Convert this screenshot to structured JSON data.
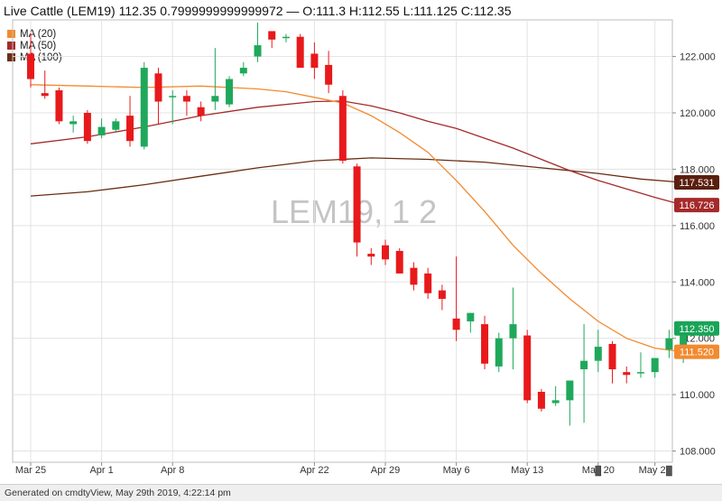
{
  "header": {
    "title": "Live Cattle (LEM19) 112.35 0.7999999999999972 — O:111.3 H:112.55 L:111.125 C:112.35"
  },
  "legend": [
    {
      "label": "MA (20)",
      "color": "#f28a30"
    },
    {
      "label": "MA (50)",
      "color": "#a52a2a"
    },
    {
      "label": "MA (100)",
      "color": "#6b2e12"
    }
  ],
  "watermark": "LEM19, 1 2",
  "footer": {
    "text": "Generated on cmdtyView, May 29th 2019, 4:22:14 pm"
  },
  "chart_data": {
    "type": "candlestick",
    "ylim": [
      107.6,
      123.3
    ],
    "y_ticks": [
      "108.000",
      "110.000",
      "112.000",
      "114.000",
      "116.000",
      "118.000",
      "120.000",
      "122.000"
    ],
    "x_labels": [
      {
        "label": "Mar 25",
        "i": 0
      },
      {
        "label": "Apr 1",
        "i": 5
      },
      {
        "label": "Apr 8",
        "i": 10
      },
      {
        "label": "Apr 22",
        "i": 20
      },
      {
        "label": "Apr 29",
        "i": 25
      },
      {
        "label": "May 6",
        "i": 30
      },
      {
        "label": "May 13",
        "i": 35
      },
      {
        "label": "May 20",
        "i": 40
      },
      {
        "label": "May 27",
        "i": 44
      }
    ],
    "candles": [
      {
        "o": 122.1,
        "h": 122.8,
        "l": 120.9,
        "c": 121.2
      },
      {
        "o": 120.7,
        "h": 121.5,
        "l": 120.5,
        "c": 120.6
      },
      {
        "o": 120.8,
        "h": 120.9,
        "l": 119.6,
        "c": 119.7
      },
      {
        "o": 119.6,
        "h": 119.9,
        "l": 119.3,
        "c": 119.7
      },
      {
        "o": 120.0,
        "h": 120.1,
        "l": 118.9,
        "c": 119.0
      },
      {
        "o": 119.2,
        "h": 119.8,
        "l": 119.1,
        "c": 119.5
      },
      {
        "o": 119.4,
        "h": 119.8,
        "l": 119.3,
        "c": 119.7
      },
      {
        "o": 119.9,
        "h": 120.6,
        "l": 118.8,
        "c": 119.0
      },
      {
        "o": 118.8,
        "h": 121.8,
        "l": 118.7,
        "c": 121.6
      },
      {
        "o": 121.4,
        "h": 121.6,
        "l": 119.6,
        "c": 120.4
      },
      {
        "o": 120.6,
        "h": 120.8,
        "l": 119.6,
        "c": 120.6
      },
      {
        "o": 120.6,
        "h": 120.8,
        "l": 119.9,
        "c": 120.4
      },
      {
        "o": 120.2,
        "h": 120.4,
        "l": 119.7,
        "c": 119.9
      },
      {
        "o": 120.4,
        "h": 122.3,
        "l": 120.1,
        "c": 120.6
      },
      {
        "o": 120.3,
        "h": 121.3,
        "l": 120.2,
        "c": 121.2
      },
      {
        "o": 121.4,
        "h": 121.8,
        "l": 121.3,
        "c": 121.6
      },
      {
        "o": 122.0,
        "h": 123.2,
        "l": 121.8,
        "c": 122.4
      },
      {
        "o": 122.9,
        "h": 122.9,
        "l": 122.3,
        "c": 122.6
      },
      {
        "o": 122.7,
        "h": 122.8,
        "l": 122.5,
        "c": 122.7
      },
      {
        "o": 122.7,
        "h": 122.8,
        "l": 121.6,
        "c": 121.6
      },
      {
        "o": 122.1,
        "h": 122.5,
        "l": 121.2,
        "c": 121.6
      },
      {
        "o": 121.7,
        "h": 122.2,
        "l": 120.7,
        "c": 121.0
      },
      {
        "o": 120.6,
        "h": 120.8,
        "l": 118.2,
        "c": 118.3
      },
      {
        "o": 118.1,
        "h": 118.2,
        "l": 114.9,
        "c": 115.4
      },
      {
        "o": 115.0,
        "h": 115.2,
        "l": 114.6,
        "c": 114.9
      },
      {
        "o": 115.3,
        "h": 115.5,
        "l": 114.6,
        "c": 114.8
      },
      {
        "o": 115.1,
        "h": 115.2,
        "l": 114.3,
        "c": 114.3
      },
      {
        "o": 114.5,
        "h": 114.7,
        "l": 113.7,
        "c": 113.9
      },
      {
        "o": 114.3,
        "h": 114.5,
        "l": 113.4,
        "c": 113.6
      },
      {
        "o": 113.7,
        "h": 113.9,
        "l": 113.0,
        "c": 113.4
      },
      {
        "o": 112.7,
        "h": 114.9,
        "l": 111.9,
        "c": 112.3
      },
      {
        "o": 112.6,
        "h": 112.9,
        "l": 112.2,
        "c": 112.9
      },
      {
        "o": 112.5,
        "h": 112.8,
        "l": 110.9,
        "c": 111.1
      },
      {
        "o": 111.0,
        "h": 112.2,
        "l": 110.8,
        "c": 112.0
      },
      {
        "o": 112.0,
        "h": 113.8,
        "l": 110.9,
        "c": 112.5
      },
      {
        "o": 112.1,
        "h": 112.3,
        "l": 109.7,
        "c": 109.8
      },
      {
        "o": 110.1,
        "h": 110.2,
        "l": 109.4,
        "c": 109.5
      },
      {
        "o": 109.7,
        "h": 110.3,
        "l": 109.6,
        "c": 109.8
      },
      {
        "o": 109.8,
        "h": 110.5,
        "l": 108.9,
        "c": 110.5
      },
      {
        "o": 110.9,
        "h": 112.5,
        "l": 109.0,
        "c": 111.2
      },
      {
        "o": 111.2,
        "h": 112.3,
        "l": 110.8,
        "c": 111.7
      },
      {
        "o": 111.8,
        "h": 111.9,
        "l": 110.4,
        "c": 110.9
      },
      {
        "o": 110.8,
        "h": 111.0,
        "l": 110.4,
        "c": 110.7
      },
      {
        "o": 110.8,
        "h": 111.5,
        "l": 110.6,
        "c": 110.8
      },
      {
        "o": 110.8,
        "h": 111.3,
        "l": 110.6,
        "c": 111.3
      },
      {
        "o": 111.6,
        "h": 112.3,
        "l": 111.3,
        "c": 112.0
      },
      {
        "o": 111.3,
        "h": 112.55,
        "l": 111.125,
        "c": 112.35
      }
    ],
    "ma20": [
      [
        0,
        121.0
      ],
      [
        4,
        120.95
      ],
      [
        8,
        120.9
      ],
      [
        12,
        120.95
      ],
      [
        16,
        120.85
      ],
      [
        18,
        120.75
      ],
      [
        20,
        120.55
      ],
      [
        22,
        120.35
      ],
      [
        24,
        119.9
      ],
      [
        26,
        119.3
      ],
      [
        28,
        118.6
      ],
      [
        30,
        117.6
      ],
      [
        32,
        116.5
      ],
      [
        34,
        115.3
      ],
      [
        36,
        114.3
      ],
      [
        38,
        113.4
      ],
      [
        40,
        112.6
      ],
      [
        42,
        112.0
      ],
      [
        44,
        111.65
      ],
      [
        46,
        111.52
      ]
    ],
    "ma50": [
      [
        0,
        118.9
      ],
      [
        4,
        119.15
      ],
      [
        8,
        119.5
      ],
      [
        12,
        119.9
      ],
      [
        16,
        120.2
      ],
      [
        20,
        120.4
      ],
      [
        22,
        120.42
      ],
      [
        24,
        120.25
      ],
      [
        26,
        120.0
      ],
      [
        28,
        119.7
      ],
      [
        30,
        119.45
      ],
      [
        32,
        119.1
      ],
      [
        34,
        118.75
      ],
      [
        36,
        118.35
      ],
      [
        38,
        117.95
      ],
      [
        40,
        117.6
      ],
      [
        42,
        117.3
      ],
      [
        44,
        117.0
      ],
      [
        46,
        116.73
      ]
    ],
    "ma100": [
      [
        0,
        117.05
      ],
      [
        4,
        117.2
      ],
      [
        8,
        117.45
      ],
      [
        12,
        117.75
      ],
      [
        16,
        118.05
      ],
      [
        20,
        118.3
      ],
      [
        24,
        118.4
      ],
      [
        28,
        118.35
      ],
      [
        32,
        118.25
      ],
      [
        36,
        118.05
      ],
      [
        40,
        117.85
      ],
      [
        43,
        117.65
      ],
      [
        46,
        117.53
      ]
    ],
    "price_labels": [
      {
        "value": "117.531",
        "y": 117.531,
        "bg": "#5b1f0e",
        "fg": "#ffffff"
      },
      {
        "value": "116.726",
        "y": 116.726,
        "bg": "#a52a2a",
        "fg": "#ffffff"
      },
      {
        "value": "112.350",
        "y": 112.35,
        "bg": "#18a558",
        "fg": "#ffffff"
      },
      {
        "value": "111.520",
        "y": 111.52,
        "bg": "#f28a30",
        "fg": "#ffffff"
      }
    ],
    "colors": {
      "up": "#1fa85b",
      "down": "#e8191b",
      "grid": "#e3e3e3",
      "axis": "#8c8c8c"
    },
    "grid": true
  }
}
